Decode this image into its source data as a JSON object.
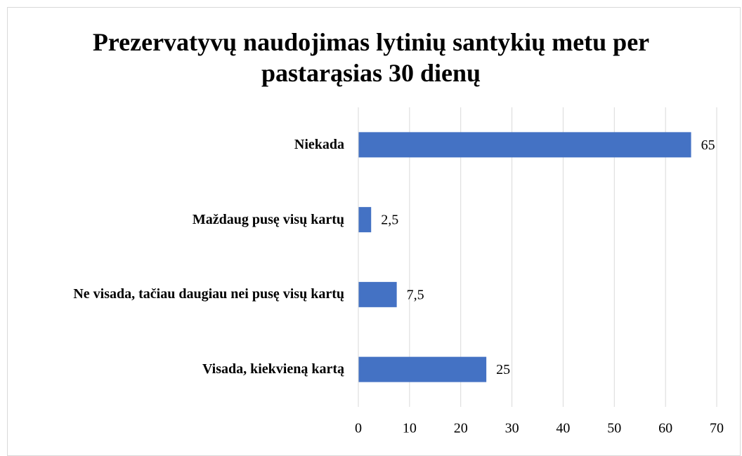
{
  "chart_data": {
    "type": "bar",
    "orientation": "horizontal",
    "title": "Prezervatyvų naudojimas lytinių santykių metu per pastarąsias 30 dienų",
    "categories": [
      "Niekada",
      "Maždaug pusę visų kartų",
      "Ne visada, tačiau daugiau nei pusę visų kartų",
      "Visada, kiekvieną kartą"
    ],
    "values": [
      65,
      2.5,
      7.5,
      25
    ],
    "value_labels": [
      "65",
      "2,5",
      "7,5",
      "25"
    ],
    "color": "#4472c4",
    "xlim": [
      0,
      70
    ],
    "xticks": [
      0,
      10,
      20,
      30,
      40,
      50,
      60,
      70
    ],
    "grid": true
  }
}
